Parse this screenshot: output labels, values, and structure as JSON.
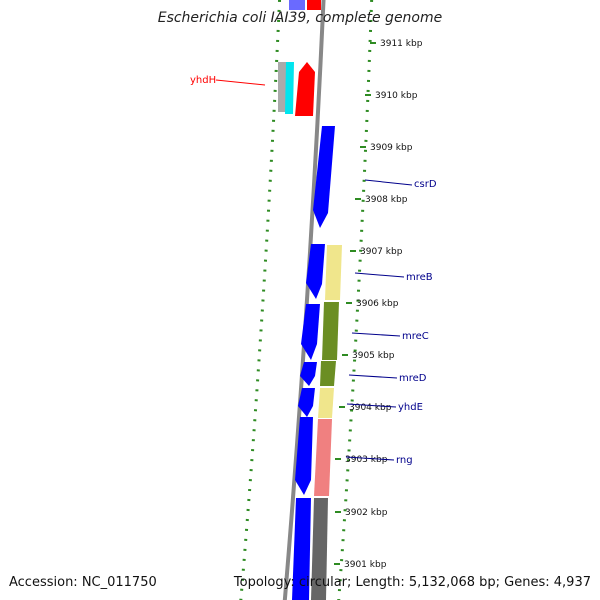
{
  "title": "Escherichia coli IAI39, complete genome",
  "footer": {
    "accession": "Accession: NC_011750",
    "summary": "Topology: circular; Length: 5,132,068 bp; Genes: 4,937"
  },
  "colors": {
    "cds": "#0000ff",
    "gc_skew": "#2e8b22",
    "backbone": "#888888",
    "label_default": "#00008b",
    "label_highlight": "#ff0000",
    "yhdH_main": "#ff0000",
    "yhdH_cyan": "#00e5ee",
    "yhdH_gray": "#aaaaaa",
    "mreB": "#f0e68c",
    "mreC": "#6b8e23",
    "mreD": "#6b8e23",
    "yhdE": "#f0e68c",
    "rng": "#f08080",
    "default_gene": "#666666"
  },
  "ticks": [
    "3911 kbp",
    "3910 kbp",
    "3909 kbp",
    "3908 kbp",
    "3907 kbp",
    "3906 kbp",
    "3905 kbp",
    "3904 kbp",
    "3903 kbp",
    "3902 kbp",
    "3901 kbp"
  ],
  "gene_labels": [
    {
      "name": "yhdH",
      "color_key": "label_highlight"
    },
    {
      "name": "csrD",
      "color_key": "label_default"
    },
    {
      "name": "mreB",
      "color_key": "label_default"
    },
    {
      "name": "mreC",
      "color_key": "label_default"
    },
    {
      "name": "mreD",
      "color_key": "label_default"
    },
    {
      "name": "yhdE",
      "color_key": "label_default"
    },
    {
      "name": "rng",
      "color_key": "label_default"
    }
  ]
}
